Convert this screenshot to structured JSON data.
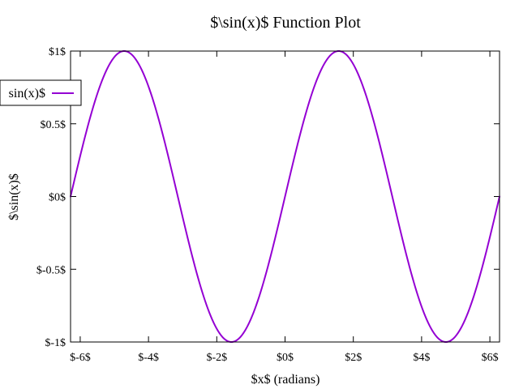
{
  "chart_data": {
    "type": "line",
    "title": "$\\sin(x)$ Function Plot",
    "xlabel": "$x$ (radians)",
    "ylabel": "$\\sin(x)$",
    "xlim": [
      -6.283185307,
      6.283185307
    ],
    "ylim": [
      -1,
      1
    ],
    "x_ticks": [
      -6,
      -4,
      -2,
      0,
      2,
      4,
      6
    ],
    "x_tick_labels": [
      "$-6$",
      "$-4$",
      "$-2$",
      "$0$",
      "$2$",
      "$4$",
      "$6$"
    ],
    "y_ticks": [
      1,
      0.5,
      0,
      -0.5,
      -1
    ],
    "y_tick_labels": [
      "$1$",
      "$0.5$",
      "$0$",
      "$-0.5$",
      "$-1$"
    ],
    "grid": false,
    "legend_position": "top-left",
    "series": [
      {
        "name": "sin(x)$",
        "function": "sin(x)",
        "color": "#9400d3",
        "x": [
          -6.2832,
          -5.4978,
          -4.7124,
          -3.927,
          -3.1416,
          -2.3562,
          -1.5708,
          -0.7854,
          0,
          0.7854,
          1.5708,
          2.3562,
          3.1416,
          3.927,
          4.7124,
          5.4978,
          6.2832
        ],
        "y": [
          0,
          0.7071,
          1,
          0.7071,
          0,
          -0.7071,
          -1,
          -0.7071,
          0,
          0.7071,
          1,
          0.7071,
          0,
          -0.7071,
          -1,
          -0.7071,
          0
        ]
      }
    ]
  }
}
